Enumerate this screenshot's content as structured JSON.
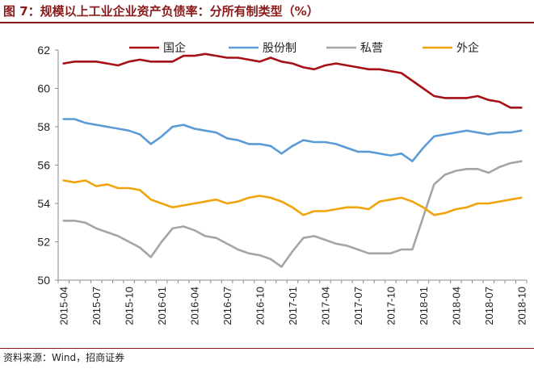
{
  "figure": {
    "title": "图 7：规模以上工业企业资产负债率：分所有制类型（%）",
    "source": "资料来源：Wind，招商证券"
  },
  "chart_data": {
    "type": "line",
    "title": "",
    "xlabel": "",
    "ylabel": "",
    "ylim": [
      50,
      62
    ],
    "yticks": [
      50,
      52,
      54,
      56,
      58,
      60,
      62
    ],
    "grid": false,
    "legend_position": "top",
    "x": [
      "2015-04",
      "2015-05",
      "2015-06",
      "2015-07",
      "2015-08",
      "2015-09",
      "2015-10",
      "2015-11",
      "2015-12",
      "2016-01",
      "2016-02",
      "2016-03",
      "2016-04",
      "2016-05",
      "2016-06",
      "2016-07",
      "2016-08",
      "2016-09",
      "2016-10",
      "2016-11",
      "2016-12",
      "2017-01",
      "2017-02",
      "2017-03",
      "2017-04",
      "2017-05",
      "2017-06",
      "2017-07",
      "2017-08",
      "2017-09",
      "2017-10",
      "2017-11",
      "2017-12",
      "2018-01",
      "2018-02",
      "2018-03",
      "2018-04",
      "2018-05",
      "2018-06",
      "2018-07",
      "2018-08",
      "2018-09",
      "2018-10"
    ],
    "xtick_labels": [
      "2015-04",
      "2015-07",
      "2015-10",
      "2016-01",
      "2016-04",
      "2016-07",
      "2016-10",
      "2017-01",
      "2017-04",
      "2017-07",
      "2017-10",
      "2018-01",
      "2018-04",
      "2018-07",
      "2018-10"
    ],
    "series": [
      {
        "name": "国企",
        "color": "#a50f15",
        "values": [
          61.3,
          61.4,
          61.4,
          61.4,
          61.3,
          61.2,
          61.4,
          61.5,
          61.4,
          61.4,
          61.4,
          61.7,
          61.7,
          61.8,
          61.7,
          61.6,
          61.6,
          61.5,
          61.4,
          61.6,
          61.4,
          61.3,
          61.1,
          61.0,
          61.2,
          61.3,
          61.2,
          61.1,
          61.0,
          61.0,
          60.9,
          60.8,
          60.4,
          60.0,
          59.6,
          59.5,
          59.5,
          59.5,
          59.6,
          59.4,
          59.3,
          59.0,
          59.0
        ]
      },
      {
        "name": "股份制",
        "color": "#5b9bd5",
        "values": [
          58.4,
          58.4,
          58.2,
          58.1,
          58.0,
          57.9,
          57.8,
          57.6,
          57.1,
          57.5,
          58.0,
          58.1,
          57.9,
          57.8,
          57.7,
          57.4,
          57.3,
          57.1,
          57.1,
          57.0,
          56.6,
          57.0,
          57.3,
          57.2,
          57.2,
          57.1,
          56.9,
          56.7,
          56.7,
          56.6,
          56.5,
          56.6,
          56.2,
          56.9,
          57.5,
          57.6,
          57.7,
          57.8,
          57.7,
          57.6,
          57.7,
          57.7,
          57.8
        ]
      },
      {
        "name": "私营",
        "color": "#a5a5a5",
        "values": [
          53.1,
          53.1,
          53.0,
          52.7,
          52.5,
          52.3,
          52.0,
          51.7,
          51.2,
          52.0,
          52.7,
          52.8,
          52.6,
          52.3,
          52.2,
          51.9,
          51.6,
          51.4,
          51.3,
          51.1,
          50.7,
          51.5,
          52.2,
          52.3,
          52.1,
          51.9,
          51.8,
          51.6,
          51.4,
          51.4,
          51.4,
          51.6,
          51.6,
          53.3,
          55.0,
          55.5,
          55.7,
          55.8,
          55.8,
          55.6,
          55.9,
          56.1,
          56.2
        ]
      },
      {
        "name": "外企",
        "color": "#f0a30a",
        "values": [
          55.2,
          55.1,
          55.2,
          54.9,
          55.0,
          54.8,
          54.8,
          54.7,
          54.2,
          54.0,
          53.8,
          53.9,
          54.0,
          54.1,
          54.2,
          54.0,
          54.1,
          54.3,
          54.4,
          54.3,
          54.1,
          53.8,
          53.4,
          53.6,
          53.6,
          53.7,
          53.8,
          53.8,
          53.7,
          54.1,
          54.2,
          54.3,
          54.1,
          53.8,
          53.4,
          53.5,
          53.7,
          53.8,
          54.0,
          54.0,
          54.1,
          54.2,
          54.3
        ]
      }
    ]
  }
}
